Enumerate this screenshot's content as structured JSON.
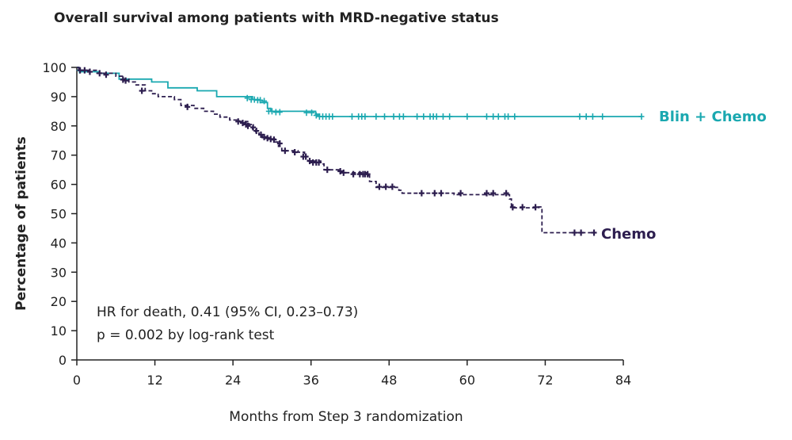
{
  "chart_data": {
    "type": "line",
    "title": "Overall survival among patients with MRD-negative status",
    "xlabel": "Months from Step 3 randomization",
    "ylabel": "Percentage of patients",
    "xlim": [
      0,
      84
    ],
    "ylim": [
      0,
      100
    ],
    "x_ticks": [
      0,
      12,
      24,
      36,
      48,
      60,
      72,
      84
    ],
    "y_ticks": [
      0,
      10,
      20,
      30,
      40,
      50,
      60,
      70,
      80,
      90,
      100
    ],
    "annotations": [
      "HR for death, 0.41 (95% CI, 0.23–0.73)",
      "p = 0.002 by log-rank test"
    ],
    "series": [
      {
        "name": "Blin + Chemo",
        "color": "#1aa8b0",
        "style": "solid",
        "steps": [
          [
            0,
            100
          ],
          [
            0.3,
            99
          ],
          [
            0.6,
            98.5
          ],
          [
            3.5,
            98
          ],
          [
            6.5,
            96
          ],
          [
            11.5,
            95
          ],
          [
            14,
            93
          ],
          [
            18.5,
            92
          ],
          [
            21.5,
            90
          ],
          [
            27,
            89
          ],
          [
            28.2,
            88
          ],
          [
            29.3,
            86
          ],
          [
            29.8,
            85
          ],
          [
            36.7,
            84
          ],
          [
            37.3,
            83.2
          ],
          [
            86.8,
            83.2
          ]
        ],
        "censors": [
          [
            0.4,
            99
          ],
          [
            26.2,
            89.5
          ],
          [
            26.8,
            89
          ],
          [
            27.3,
            89
          ],
          [
            27.8,
            88.8
          ],
          [
            28.2,
            88.8
          ],
          [
            28.8,
            88.5
          ],
          [
            29.5,
            85
          ],
          [
            30,
            85
          ],
          [
            30.6,
            84.7
          ],
          [
            31.2,
            84.7
          ],
          [
            35.3,
            84.5
          ],
          [
            36.1,
            84.5
          ],
          [
            36.8,
            83.6
          ],
          [
            37.3,
            83.2
          ],
          [
            37.8,
            83.2
          ],
          [
            38.3,
            83.2
          ],
          [
            38.8,
            83.2
          ],
          [
            39.3,
            83.2
          ],
          [
            42.3,
            83.2
          ],
          [
            43.3,
            83.2
          ],
          [
            43.8,
            83.2
          ],
          [
            44.3,
            83.2
          ],
          [
            46,
            83.2
          ],
          [
            47.3,
            83.2
          ],
          [
            48.7,
            83.2
          ],
          [
            49.6,
            83.2
          ],
          [
            50.2,
            83.2
          ],
          [
            52.3,
            83.2
          ],
          [
            53.3,
            83.2
          ],
          [
            54.3,
            83.2
          ],
          [
            54.8,
            83.2
          ],
          [
            55.3,
            83.2
          ],
          [
            56.3,
            83.2
          ],
          [
            57.3,
            83.2
          ],
          [
            60,
            83.2
          ],
          [
            63,
            83.2
          ],
          [
            64,
            83.2
          ],
          [
            64.8,
            83.2
          ],
          [
            65.8,
            83.2
          ],
          [
            66.3,
            83.2
          ],
          [
            67.3,
            83.2
          ],
          [
            77.3,
            83.2
          ],
          [
            78.3,
            83.2
          ],
          [
            79.3,
            83.2
          ],
          [
            80.8,
            83.2
          ],
          [
            86.8,
            83.2
          ]
        ]
      },
      {
        "name": "Chemo",
        "color": "#2d1e4f",
        "style": "dashed",
        "steps": [
          [
            0,
            100
          ],
          [
            0.3,
            99
          ],
          [
            3,
            98
          ],
          [
            6,
            97
          ],
          [
            7,
            96
          ],
          [
            8,
            95
          ],
          [
            9,
            94
          ],
          [
            10.5,
            92
          ],
          [
            11.5,
            91
          ],
          [
            12.5,
            90
          ],
          [
            15,
            89
          ],
          [
            16,
            87
          ],
          [
            18,
            86
          ],
          [
            19.5,
            85
          ],
          [
            21,
            84
          ],
          [
            22,
            83
          ],
          [
            23.5,
            82
          ],
          [
            25,
            81.5
          ],
          [
            26.5,
            80.5
          ],
          [
            27,
            79
          ],
          [
            27.5,
            78
          ],
          [
            28,
            77
          ],
          [
            28.5,
            76
          ],
          [
            29.5,
            75.5
          ],
          [
            30.5,
            74.5
          ],
          [
            31,
            73
          ],
          [
            31.5,
            71.5
          ],
          [
            34,
            71
          ],
          [
            35,
            69.5
          ],
          [
            35.5,
            68
          ],
          [
            37.5,
            67
          ],
          [
            38,
            65
          ],
          [
            40.5,
            64
          ],
          [
            44.5,
            63
          ],
          [
            45,
            61
          ],
          [
            46,
            59
          ],
          [
            49.5,
            58
          ],
          [
            50,
            57
          ],
          [
            58,
            56.5
          ],
          [
            66.5,
            55
          ],
          [
            66.8,
            52
          ],
          [
            71,
            52.3
          ],
          [
            71.5,
            43.5
          ],
          [
            79.5,
            43.5
          ]
        ],
        "censors": [
          [
            0.5,
            99
          ],
          [
            1.2,
            99
          ],
          [
            2,
            98.5
          ],
          [
            3.5,
            98
          ],
          [
            4.5,
            97.5
          ],
          [
            7.1,
            95.8
          ],
          [
            7.5,
            95.5
          ],
          [
            10,
            92
          ],
          [
            17,
            86.5
          ],
          [
            24.8,
            81.5
          ],
          [
            25.5,
            81
          ],
          [
            26,
            80.5
          ],
          [
            26.3,
            80
          ],
          [
            27.1,
            79.5
          ],
          [
            27.6,
            78.3
          ],
          [
            28.3,
            77
          ],
          [
            28.8,
            76.2
          ],
          [
            29.3,
            75.8
          ],
          [
            29.8,
            75.5
          ],
          [
            30.3,
            75.3
          ],
          [
            31.2,
            74
          ],
          [
            32,
            71.5
          ],
          [
            33.5,
            71
          ],
          [
            34.8,
            69.5
          ],
          [
            35.2,
            69.5
          ],
          [
            35.8,
            68
          ],
          [
            36.3,
            67.5
          ],
          [
            36.8,
            67.5
          ],
          [
            37.2,
            67.5
          ],
          [
            38.5,
            65
          ],
          [
            40.5,
            64.5
          ],
          [
            41,
            64
          ],
          [
            42.5,
            63.5
          ],
          [
            43.5,
            63.5
          ],
          [
            44,
            63.5
          ],
          [
            44.3,
            63.5
          ],
          [
            44.7,
            63.5
          ],
          [
            46.5,
            59.2
          ],
          [
            47.5,
            59.2
          ],
          [
            48.5,
            59.2
          ],
          [
            53,
            57
          ],
          [
            55,
            57
          ],
          [
            56,
            57
          ],
          [
            59,
            57
          ],
          [
            63,
            57
          ],
          [
            64,
            57
          ],
          [
            66,
            57
          ],
          [
            67,
            52.2
          ],
          [
            68.5,
            52.2
          ],
          [
            70.5,
            52.2
          ],
          [
            76.5,
            43.5
          ],
          [
            77.5,
            43.5
          ],
          [
            79.5,
            43.5
          ]
        ]
      }
    ]
  }
}
